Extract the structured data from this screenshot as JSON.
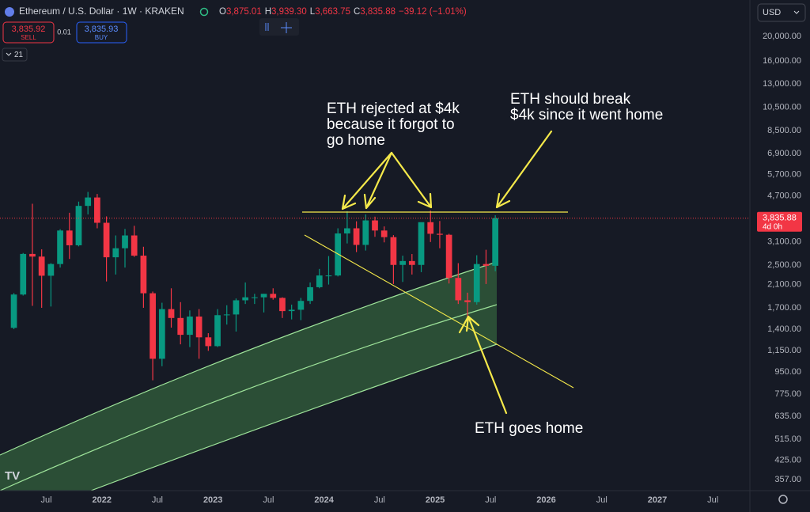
{
  "header": {
    "symbol": "Ethereum / U.S. Dollar · 1W · KRAKEN",
    "ohlc": [
      "O",
      "3,875.01",
      "H",
      "3,939.30",
      "L",
      "3,663.75",
      "C",
      "3,835.88",
      "−39.12 (−1.01%)"
    ],
    "sell_price": "3,835.92",
    "sell": "SELL",
    "spread": "0.01",
    "buy_price": "3,835.93",
    "buy": "BUY",
    "indicators": "21",
    "currency": "USD"
  },
  "annotations": [
    {
      "lines": [
        "ETH rejected at $4k",
        "because it forgot to",
        "go home"
      ]
    },
    {
      "lines": [
        "ETH should break",
        "$4k since it went home"
      ]
    },
    {
      "lines": [
        "ETH goes home"
      ]
    }
  ],
  "chart_data": {
    "type": "candlestick",
    "log_scale": true,
    "up_color": "#089981",
    "down_color": "#f23645",
    "x": [
      "2021-03",
      "2021-04",
      "2021-05",
      "2021-06",
      "2021-07",
      "2021-08",
      "2021-09",
      "2021-10",
      "2021-11",
      "2021-12",
      "2022-01",
      "2022-02",
      "2022-03",
      "2022-04",
      "2022-05",
      "2022-06",
      "2022-07",
      "2022-08",
      "2022-09",
      "2022-10",
      "2022-11",
      "2022-12",
      "2023-01",
      "2023-02",
      "2023-03",
      "2023-04",
      "2023-05",
      "2023-06",
      "2023-07",
      "2023-08",
      "2023-09",
      "2023-10",
      "2023-11",
      "2023-12",
      "2024-01",
      "2024-02",
      "2024-03",
      "2024-04",
      "2024-05",
      "2024-06",
      "2024-07",
      "2024-08",
      "2024-09",
      "2024-10",
      "2024-11",
      "2024-12",
      "2025-01",
      "2025-02",
      "2025-03",
      "2025-04",
      "2025-05",
      "2025-06",
      "2025-07"
    ],
    "open": [
      1417,
      1918,
      2773,
      2707,
      2275,
      2530,
      3430,
      3000,
      4290,
      4630,
      3680,
      2690,
      2920,
      3280,
      2730,
      1940,
      1070,
      1680,
      1550,
      1330,
      1570,
      1300,
      1200,
      1590,
      1600,
      1820,
      1870,
      1870,
      1930,
      1860,
      1650,
      1670,
      1810,
      2050,
      2280,
      2280,
      3340,
      3500,
      3010,
      3760,
      3430,
      3230,
      2510,
      2600,
      2510,
      3700,
      3330,
      3300,
      2230,
      1820,
      1790,
      2530,
      2490
    ],
    "high": [
      1943,
      2797,
      4372,
      2891,
      2550,
      3470,
      4030,
      4460,
      4870,
      4780,
      3900,
      3280,
      3480,
      3580,
      2960,
      1970,
      1780,
      2030,
      1790,
      1660,
      1680,
      1350,
      1680,
      1740,
      1850,
      2140,
      1930,
      1930,
      2030,
      1870,
      1750,
      1860,
      2140,
      2420,
      2720,
      3500,
      4090,
      3730,
      3970,
      3890,
      3560,
      3290,
      2730,
      2770,
      3680,
      4110,
      3740,
      3330,
      2550,
      1950,
      2740,
      2880,
      3940
    ],
    "low": [
      1400,
      1900,
      1730,
      1700,
      1720,
      2450,
      2650,
      2970,
      3970,
      3500,
      2160,
      2300,
      2450,
      2700,
      1700,
      880,
      1000,
      1420,
      1220,
      1190,
      1070,
      1150,
      1190,
      1460,
      1370,
      1760,
      1760,
      1630,
      1830,
      1550,
      1530,
      1520,
      1760,
      2030,
      2100,
      2260,
      3050,
      2820,
      2860,
      3240,
      3080,
      2110,
      2150,
      2300,
      2350,
      3090,
      2920,
      2120,
      1760,
      1390,
      1750,
      2110,
      2370
    ],
    "close": [
      1918,
      2773,
      2707,
      2275,
      2530,
      3430,
      3000,
      4290,
      4630,
      3680,
      2690,
      2920,
      3280,
      2730,
      1940,
      1070,
      1680,
      1550,
      1330,
      1570,
      1300,
      1200,
      1590,
      1600,
      1820,
      1870,
      1870,
      1930,
      1860,
      1650,
      1670,
      1810,
      2050,
      2280,
      2280,
      3340,
      3500,
      3010,
      3760,
      3430,
      3230,
      2510,
      2600,
      2510,
      3700,
      3330,
      3300,
      2230,
      1820,
      1790,
      2530,
      2490,
      3835.88
    ],
    "current_price": {
      "value": 3835.88,
      "label": "3,835.88"
    },
    "countdown": "4d 0h",
    "xlim": [
      "2021-02",
      "2027-11"
    ],
    "xticks": [
      {
        "value": "2021-07",
        "label": "Jul"
      },
      {
        "value": "2022-01",
        "label": "2022"
      },
      {
        "value": "2022-07",
        "label": "Jul"
      },
      {
        "value": "2023-01",
        "label": "2023"
      },
      {
        "value": "2023-07",
        "label": "Jul"
      },
      {
        "value": "2024-01",
        "label": "2024"
      },
      {
        "value": "2024-07",
        "label": "Jul"
      },
      {
        "value": "2025-01",
        "label": "2025"
      },
      {
        "value": "2025-07",
        "label": "Jul"
      },
      {
        "value": "2026-01",
        "label": "2026"
      },
      {
        "value": "2026-07",
        "label": "Jul"
      },
      {
        "value": "2027-01",
        "label": "2027"
      },
      {
        "value": "2027-07",
        "label": "Jul"
      }
    ],
    "ylim": [
      323,
      27840
    ],
    "yticks": [
      {
        "value": 20000,
        "label": "20,000.00"
      },
      {
        "value": 16000,
        "label": "16,000.00"
      },
      {
        "value": 13000,
        "label": "13,000.00"
      },
      {
        "value": 10500,
        "label": "10,500.00"
      },
      {
        "value": 8500,
        "label": "8,500.00"
      },
      {
        "value": 6900,
        "label": "6,900.00"
      },
      {
        "value": 5700,
        "label": "5,700.00"
      },
      {
        "value": 4700,
        "label": "4,700.00"
      },
      {
        "value": 3100,
        "label": "3,100.00"
      },
      {
        "value": 2500,
        "label": "2,500.00"
      },
      {
        "value": 2100,
        "label": "2,100.00"
      },
      {
        "value": 1700,
        "label": "1,700.00"
      },
      {
        "value": 1400,
        "label": "1,400.00"
      },
      {
        "value": 1150,
        "label": "1,150.00"
      },
      {
        "value": 950,
        "label": "950.00"
      },
      {
        "value": 775,
        "label": "775.00"
      },
      {
        "value": 635,
        "label": "635.00"
      },
      {
        "value": 515,
        "label": "515.00"
      },
      {
        "value": 425,
        "label": "425.00"
      },
      {
        "value": 357,
        "label": "357.00"
      }
    ]
  }
}
